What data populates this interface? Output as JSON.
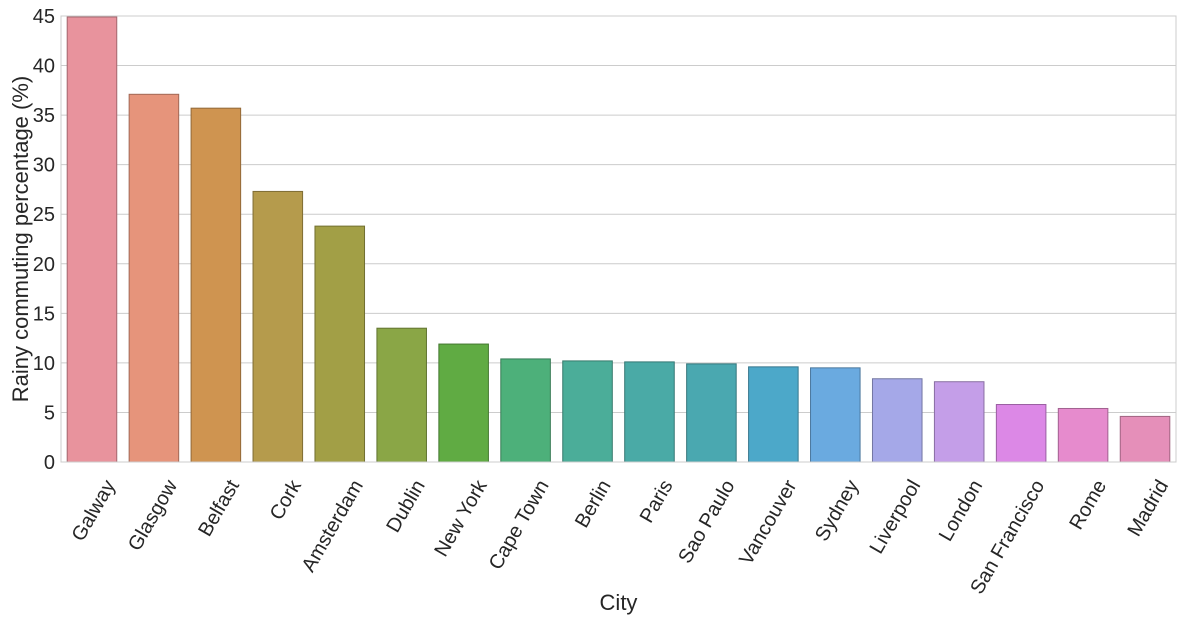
{
  "chart_data": {
    "type": "bar",
    "title": "",
    "xlabel": "City",
    "ylabel": "Rainy commuting percentage (%)",
    "ylim": [
      0,
      45
    ],
    "yticks": [
      0,
      5,
      10,
      15,
      20,
      25,
      30,
      35,
      40,
      45
    ],
    "grid": "horizontal",
    "categories": [
      "Galway",
      "Glasgow",
      "Belfast",
      "Cork",
      "Amsterdam",
      "Dublin",
      "New York",
      "Cape Town",
      "Berlin",
      "Paris",
      "Sao Paulo",
      "Vancouver",
      "Sydney",
      "Liverpool",
      "London",
      "San Francisco",
      "Rome",
      "Madrid"
    ],
    "values": [
      44.9,
      37.1,
      35.7,
      27.3,
      23.8,
      13.5,
      11.9,
      10.4,
      10.2,
      10.1,
      9.9,
      9.6,
      9.5,
      8.4,
      8.1,
      5.8,
      5.4,
      4.6
    ],
    "colors": [
      "#e8939d",
      "#e6947b",
      "#cf9450",
      "#b59b4c",
      "#a29f46",
      "#8aa646",
      "#60ab43",
      "#4db07a",
      "#4bad99",
      "#4aaaa6",
      "#4aa8b0",
      "#4ca8c9",
      "#6aaae0",
      "#a5a8e8",
      "#c49ee8",
      "#dc88e6",
      "#e68bcd",
      "#e58fb9"
    ]
  }
}
